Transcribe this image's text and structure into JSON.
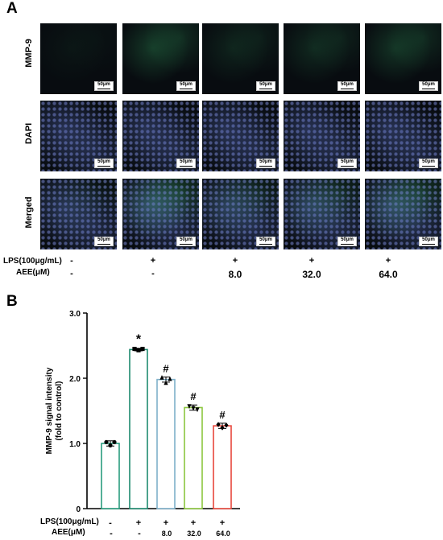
{
  "panel_a": {
    "letter": "A",
    "rows": [
      "MMP-9",
      "DAPI",
      "Merged"
    ],
    "scale_label": "50μm",
    "conditions": {
      "lps_label": "LPS(100μg/mL)",
      "aee_label": "AEE(μM)",
      "lps_values": [
        "-",
        "+",
        "+",
        "+",
        "+"
      ],
      "aee_values": [
        "-",
        "-",
        "8.0",
        "32.0",
        "64.0"
      ]
    },
    "colors": {
      "mmp9": "#2fae6a",
      "dapi": "#4a5fc8",
      "background": "#080c10"
    }
  },
  "panel_b": {
    "letter": "B",
    "lps_label": "LPS(100μg/mL)",
    "aee_label": "AEE(μM)"
  },
  "chart_data": {
    "type": "bar",
    "categories": [
      "-/-",
      "+/-",
      "+/8.0",
      "+/32.0",
      "+/64.0"
    ],
    "lps": [
      "-",
      "+",
      "+",
      "+",
      "+"
    ],
    "aee": [
      "-",
      "-",
      "8.0",
      "32.0",
      "64.0"
    ],
    "values": [
      1.0,
      2.44,
      1.98,
      1.55,
      1.27
    ],
    "errors": [
      0.04,
      0.02,
      0.04,
      0.04,
      0.04
    ],
    "points": [
      [
        1.02,
        0.97,
        1.02
      ],
      [
        2.45,
        2.43,
        2.45
      ],
      [
        2.01,
        1.93,
        1.99
      ],
      [
        1.57,
        1.54,
        1.52
      ],
      [
        1.29,
        1.24,
        1.28
      ]
    ],
    "markers": [
      "circle",
      "square",
      "triangle-up",
      "triangle-down",
      "diamond"
    ],
    "annotations": [
      "",
      "*",
      "#",
      "#",
      "#"
    ],
    "colors": [
      "#2a9d7e",
      "#1f8a70",
      "#7fb0c9",
      "#8cc63f",
      "#e8473c"
    ],
    "ylabel": "MMP-9 signal intensity\n(fold to control)",
    "ylabel_lines": [
      "MMP-9 signal intensity",
      "(fold to control)"
    ],
    "yticks": [
      "0",
      "1.0",
      "2.0",
      "3.0"
    ],
    "ylim": [
      0,
      3.0
    ],
    "grid": false,
    "legend": "none"
  }
}
